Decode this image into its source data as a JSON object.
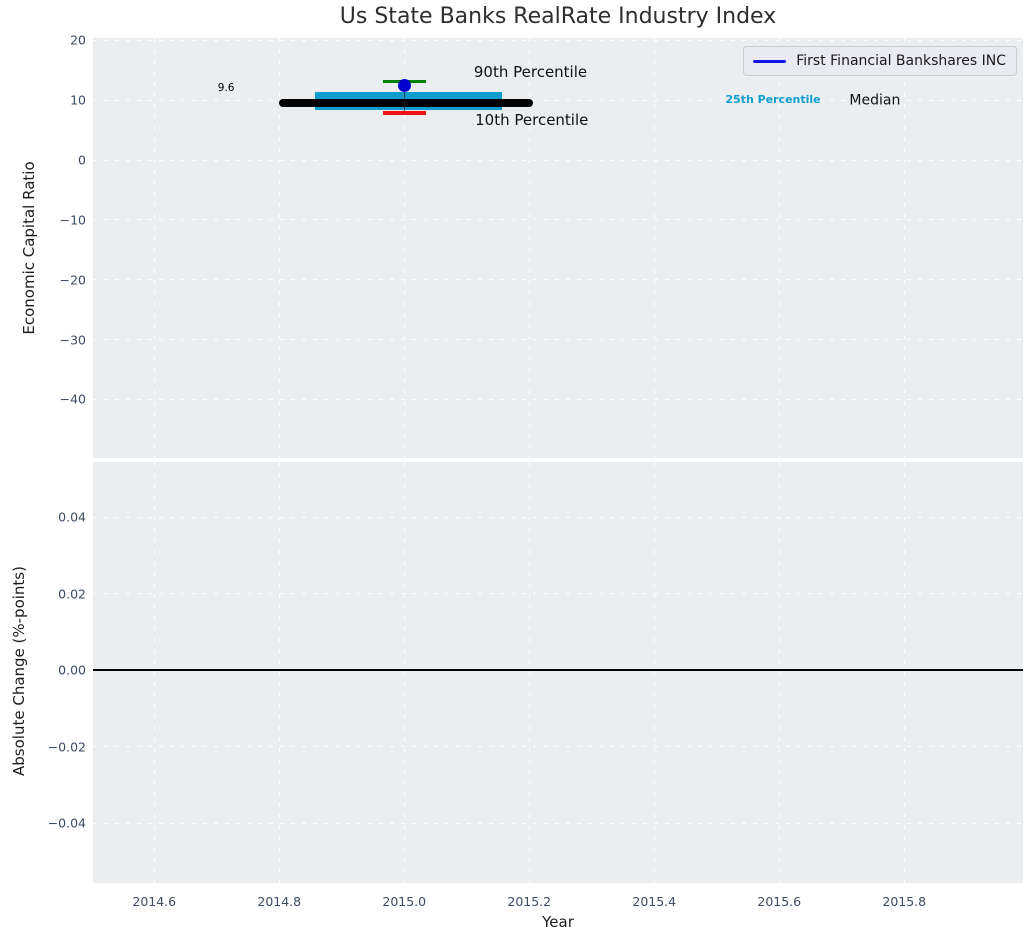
{
  "figure": {
    "title": "Us State Banks RealRate Industry Index",
    "colors": {
      "axes_background": "#eaeef0",
      "grid": "#ffffff",
      "tick_label": "#3d4c63",
      "title": "#2e2e2e"
    }
  },
  "legend": {
    "label": "First Financial Bankshares INC",
    "line_color": "#1414e8",
    "background": "#e9eaf2",
    "border": "#cccccc",
    "position": "upper right"
  },
  "chart_data": [
    {
      "type": "scatter",
      "title": "Us State Banks RealRate Industry Index",
      "ylabel": "Economic Capital Ratio",
      "xlim": [
        2014.502,
        2015.99
      ],
      "ylim": [
        -49.8,
        20.4
      ],
      "grid": true,
      "xticks": [
        2014.6,
        2014.8,
        2015.0,
        2015.2,
        2015.4,
        2015.6,
        2015.8
      ],
      "xtick_labels": [],
      "yticks": [
        20,
        10,
        0,
        -10,
        -20,
        -30,
        -40
      ],
      "ytick_labels": [
        "20",
        "10",
        "0",
        "−10",
        "−20",
        "−30",
        "−40"
      ],
      "legend_entries": [
        "First Financial Bankshares INC"
      ],
      "data": {
        "year": 2015.0,
        "company": {
          "name": "First Financial Bankshares INC",
          "value": 12.4
        },
        "industry": {
          "p10": 7.9,
          "p25": 8.4,
          "median": 9.6,
          "p75": 11.4,
          "p90": 13.1
        }
      },
      "marks": [
        {
          "name": "iqr-band",
          "kind": "band",
          "x1": 2014.857,
          "x2": 2015.157,
          "y1": 8.4,
          "y2": 11.4,
          "color": "#0f9dd0"
        },
        {
          "name": "median-line",
          "kind": "hline",
          "y": 9.6,
          "x1": 2014.8,
          "x2": 2015.206,
          "color": "#000000",
          "thickness": 8,
          "round": true
        },
        {
          "name": "percentile-connector",
          "kind": "vline",
          "x": 2015.0,
          "y1": 7.9,
          "y2": 13.1,
          "color": "rgba(25,25,25,0.75)",
          "thickness": 1.5
        },
        {
          "name": "p90-tick",
          "kind": "hline",
          "y": 13.1,
          "x1": 2014.966,
          "x2": 2015.034,
          "color": "#008000",
          "thickness": 3.5
        },
        {
          "name": "p10-tick",
          "kind": "hline",
          "y": 7.9,
          "x1": 2014.966,
          "x2": 2015.034,
          "color": "#ee1111",
          "thickness": 3.5
        },
        {
          "name": "company-point",
          "kind": "dot",
          "x": 2015.0,
          "y": 12.4,
          "color": "#0000cd",
          "size": 13
        }
      ],
      "annotations": [
        {
          "name": "median-value-label",
          "text": "9.6",
          "x": 2014.715,
          "y": 11.9,
          "size": 10.5,
          "color": "#000000",
          "weight": 400
        },
        {
          "name": "p90-label",
          "text": "90th Percentile",
          "x": 2015.202,
          "y": 14.7,
          "size": 15,
          "color": "#111111",
          "weight": 400
        },
        {
          "name": "p10-label",
          "text": "10th Percentile",
          "x": 2015.204,
          "y": 6.7,
          "size": 15,
          "color": "#111111",
          "weight": 400
        },
        {
          "name": "p25-label",
          "text": "25th Percentile",
          "x": 2015.59,
          "y": 10.0,
          "size": 11,
          "color": "#0f9dd0",
          "weight": 700
        },
        {
          "name": "median-label",
          "text": "Median",
          "x": 2015.753,
          "y": 9.86,
          "size": 14,
          "color": "#111111",
          "weight": 400
        }
      ]
    },
    {
      "type": "line",
      "ylabel": "Absolute Change (%-points)",
      "xlabel": "Year",
      "xlim": [
        2014.502,
        2015.99
      ],
      "ylim": [
        -0.0556,
        0.0545
      ],
      "grid": true,
      "xticks": [
        2014.6,
        2014.8,
        2015.0,
        2015.2,
        2015.4,
        2015.6,
        2015.8
      ],
      "xtick_labels": [
        "2014.6",
        "2014.8",
        "2015.0",
        "2015.2",
        "2015.4",
        "2015.6",
        "2015.8"
      ],
      "yticks": [
        0.04,
        0.02,
        0.0,
        -0.02,
        -0.04
      ],
      "ytick_labels": [
        "0.04",
        "0.02",
        "0.00",
        "−0.02",
        "−0.04"
      ],
      "data": {
        "series": [],
        "zero_line": 0.0
      },
      "marks": [
        {
          "name": "zero-line",
          "kind": "hline",
          "y": 0.0,
          "x1": null,
          "x2": null,
          "color": "#000000",
          "thickness": 2
        }
      ],
      "annotations": []
    }
  ]
}
